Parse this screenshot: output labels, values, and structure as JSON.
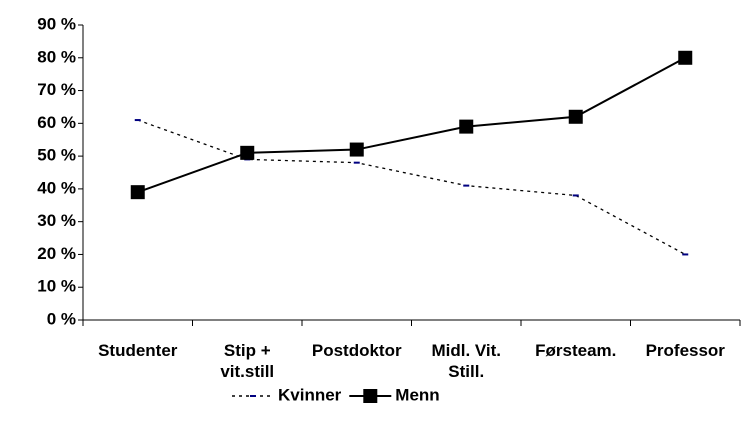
{
  "chart_data": {
    "type": "line",
    "categories": [
      "Studenter",
      "Stip +\nvit.still",
      "Postdoktor",
      "Midl. Vit.\nStill.",
      "Førsteam.",
      "Professor"
    ],
    "series": [
      {
        "name": "Kvinner",
        "color": "#000000",
        "marker_color": "#000080",
        "line_style": "dotted",
        "marker": "dash",
        "values": [
          61,
          49,
          48,
          41,
          38,
          20
        ]
      },
      {
        "name": "Menn",
        "color": "#000000",
        "line_style": "solid",
        "marker": "square",
        "values": [
          39,
          51,
          52,
          59,
          62,
          80
        ]
      }
    ],
    "ylim": [
      0,
      90
    ],
    "yticks": [
      {
        "value": 0,
        "label": "0 %"
      },
      {
        "value": 10,
        "label": "10 %"
      },
      {
        "value": 20,
        "label": "20 %"
      },
      {
        "value": 30,
        "label": "30 %"
      },
      {
        "value": 40,
        "label": "40 %"
      },
      {
        "value": 50,
        "label": "50 %"
      },
      {
        "value": 60,
        "label": "60 %"
      },
      {
        "value": 70,
        "label": "70 %"
      },
      {
        "value": 80,
        "label": "80 %"
      },
      {
        "value": 90,
        "label": "90 %"
      }
    ],
    "grid": false,
    "legend": "bottom"
  }
}
